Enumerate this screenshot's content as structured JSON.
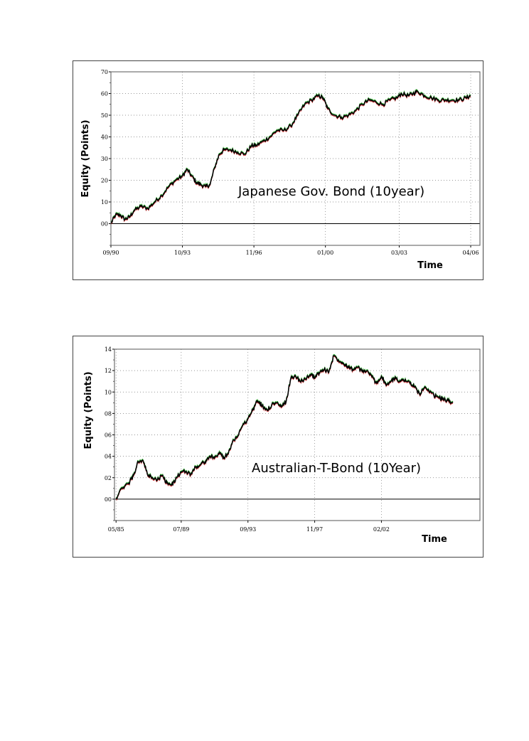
{
  "charts": [
    {
      "title": "Japanese Gov. Bond (10year)",
      "ylabel": "Equity (Points)",
      "xlabel": "Time",
      "y_ticks": [
        "70",
        "60",
        "50",
        "40",
        "30",
        "20",
        "10",
        "00"
      ],
      "x_ticks": [
        "09/90",
        "10/93",
        "11/96",
        "01/00",
        "03/03",
        "04/06"
      ]
    },
    {
      "title": "Australian-T-Bond (10Year)",
      "ylabel": "Equity (Points)",
      "xlabel": "Time",
      "y_ticks": [
        "14",
        "12",
        "10",
        "08",
        "06",
        "04",
        "02",
        "00"
      ],
      "x_ticks": [
        "05/85",
        "07/89",
        "09/93",
        "11/97",
        "02/02"
      ]
    }
  ],
  "chart_data": [
    {
      "type": "line",
      "title": "Japanese Gov. Bond (10year)",
      "xlabel": "Time",
      "ylabel": "Equity (Points)",
      "x_range": [
        1990.7,
        2006.7
      ],
      "ylim": [
        -10,
        70
      ],
      "x_ticks": [
        {
          "label": "09/90",
          "x": 1990.7
        },
        {
          "label": "10/93",
          "x": 1993.8
        },
        {
          "label": "11/96",
          "x": 1996.9
        },
        {
          "label": "01/00",
          "x": 2000.0
        },
        {
          "label": "03/03",
          "x": 2003.2
        },
        {
          "label": "04/06",
          "x": 2006.3
        }
      ],
      "y_ticks": [
        70,
        60,
        50,
        40,
        30,
        20,
        10,
        0
      ],
      "grid": true,
      "series": [
        {
          "name": "Equity",
          "x": [
            1990.7,
            1990.9,
            1991.1,
            1991.3,
            1991.5,
            1991.7,
            1992.0,
            1992.3,
            1992.6,
            1992.9,
            1993.2,
            1993.5,
            1993.8,
            1994.0,
            1994.2,
            1994.4,
            1994.6,
            1994.8,
            1995.0,
            1995.2,
            1995.4,
            1995.6,
            1995.9,
            1996.2,
            1996.5,
            1996.8,
            1997.0,
            1997.3,
            1997.6,
            1997.9,
            1998.2,
            1998.5,
            1998.8,
            1999.1,
            1999.4,
            1999.7,
            1999.9,
            2000.1,
            2000.4,
            2000.7,
            2001.0,
            2001.3,
            2001.6,
            2001.9,
            2002.2,
            2002.5,
            2002.8,
            2003.1,
            2003.3,
            2003.6,
            2003.8,
            2004.0,
            2004.3,
            2004.6,
            2004.9,
            2005.2,
            2005.5,
            2005.8,
            2006.1,
            2006.3
          ],
          "values": [
            0,
            4,
            4,
            2,
            3,
            6,
            8,
            7,
            10,
            13,
            17,
            20,
            22,
            25,
            22,
            19,
            18,
            17,
            18,
            26,
            32,
            34,
            34,
            33,
            32,
            36,
            36,
            38,
            40,
            43,
            43,
            45,
            50,
            55,
            57,
            59,
            58,
            53,
            50,
            49,
            50,
            52,
            55,
            57,
            56,
            55,
            57,
            58,
            60,
            59,
            60,
            61,
            59,
            58,
            57,
            57,
            57,
            57,
            58,
            59
          ]
        }
      ],
      "annotation": "Japanese Gov. Bond (10year)"
    },
    {
      "type": "line",
      "title": "Australian-T-Bond (10Year)",
      "xlabel": "Time",
      "ylabel": "Equity (Points)",
      "x_range": [
        1985.3,
        2008.3
      ],
      "ylim": [
        -2,
        14
      ],
      "x_ticks": [
        {
          "label": "05/85",
          "x": 1985.4
        },
        {
          "label": "07/89",
          "x": 1989.5
        },
        {
          "label": "09/93",
          "x": 1993.7
        },
        {
          "label": "11/97",
          "x": 1997.9
        },
        {
          "label": "02/02",
          "x": 2002.1
        }
      ],
      "y_ticks": [
        14,
        12,
        10,
        8,
        6,
        4,
        2,
        0
      ],
      "grid": true,
      "series": [
        {
          "name": "Equity",
          "x": [
            1985.4,
            1985.8,
            1986.2,
            1986.5,
            1986.8,
            1987.1,
            1987.4,
            1987.7,
            1988.0,
            1988.3,
            1988.6,
            1988.9,
            1989.2,
            1989.5,
            1989.8,
            1990.1,
            1990.4,
            1990.7,
            1991.0,
            1991.3,
            1991.6,
            1991.9,
            1992.2,
            1992.5,
            1992.8,
            1993.0,
            1993.3,
            1993.7,
            1994.0,
            1994.3,
            1994.6,
            1994.9,
            1995.2,
            1995.5,
            1995.8,
            1996.1,
            1996.4,
            1996.7,
            1997.0,
            1997.3,
            1997.6,
            1997.9,
            1998.2,
            1998.5,
            1998.8,
            1999.1,
            1999.4,
            1999.7,
            2000.0,
            2000.3,
            2000.6,
            2000.9,
            2001.2,
            2001.5,
            2001.8,
            2002.1,
            2002.4,
            2002.7,
            2003.0,
            2003.3,
            2003.6,
            2003.9,
            2004.2,
            2004.5,
            2004.8,
            2005.1,
            2005.4,
            2005.7,
            2006.0,
            2006.3,
            2006.6
          ],
          "values": [
            0.1,
            1.0,
            1.5,
            2.2,
            3.5,
            3.6,
            2.2,
            2.0,
            1.8,
            2.2,
            1.5,
            1.3,
            2.0,
            2.5,
            2.6,
            2.3,
            3.0,
            3.2,
            3.5,
            4.0,
            3.8,
            4.4,
            3.8,
            4.5,
            5.5,
            5.8,
            6.7,
            7.5,
            8.3,
            9.2,
            8.7,
            8.3,
            8.8,
            9.0,
            8.6,
            9.1,
            11.3,
            11.5,
            11.0,
            11.2,
            11.6,
            11.4,
            11.8,
            12.1,
            11.9,
            13.4,
            13.0,
            12.7,
            12.4,
            12.1,
            12.3,
            11.9,
            12.0,
            11.4,
            10.8,
            11.5,
            10.6,
            11.0,
            11.3,
            11.0,
            11.2,
            10.8,
            10.5,
            9.8,
            10.4,
            10.0,
            9.7,
            9.5,
            9.3,
            9.2,
            9.0
          ]
        }
      ],
      "annotation": "Australian-T-Bond (10Year)"
    }
  ]
}
